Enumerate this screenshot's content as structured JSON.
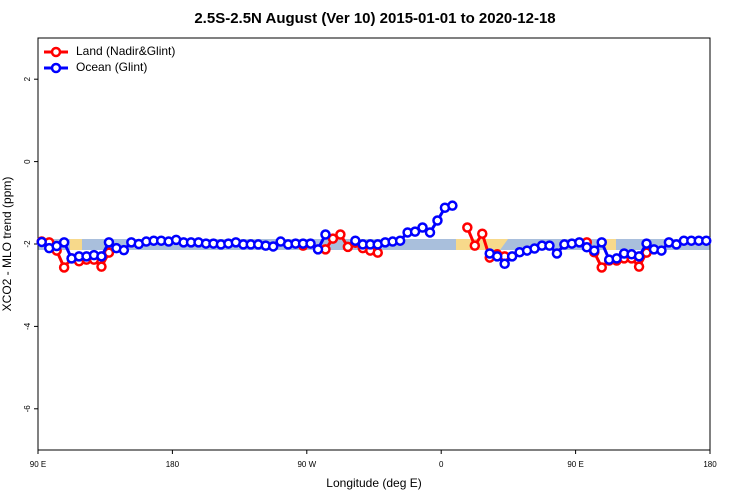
{
  "chart_data": {
    "type": "line",
    "title": "2.5S-2.5N August (Ver 10)   2015-01-01 to 2020-12-18",
    "x_label": "Longitude (deg E)",
    "y_label": "XCO2 - MLO trend (ppm)",
    "x": [
      92.5,
      97.5,
      102.5,
      107.5,
      112.5,
      117.5,
      122.5,
      127.5,
      132.5,
      137.5,
      142.5,
      147.5,
      152.5,
      157.5,
      162.5,
      167.5,
      172.5,
      177.5,
      182.5,
      187.5,
      192.5,
      197.5,
      202.5,
      207.5,
      212.5,
      217.5,
      222.5,
      227.5,
      232.5,
      237.5,
      242.5,
      247.5,
      252.5,
      257.5,
      262.5,
      267.5,
      272.5,
      277.5,
      282.5,
      287.5,
      292.5,
      297.5,
      302.5,
      307.5,
      312.5,
      317.5,
      322.5,
      327.5,
      332.5,
      337.5,
      342.5,
      347.5,
      352.5,
      357.5,
      362.5,
      367.5,
      372.5,
      377.5,
      382.5,
      387.5,
      392.5,
      397.5,
      402.5,
      407.5,
      412.5,
      417.5,
      422.5,
      427.5,
      432.5,
      437.5,
      442.5,
      447.5,
      452.5,
      457.5,
      462.5,
      467.5,
      472.5,
      477.5,
      482.5,
      487.5,
      492.5,
      497.5,
      502.5,
      507.5,
      512.5,
      517.5,
      522.5,
      527.5,
      532.5,
      537.5
    ],
    "series": [
      {
        "name": "Land (Nadir&Glint)",
        "color": "#ff0000",
        "values": [
          -1.94,
          -1.96,
          -2.16,
          -2.57,
          -2.35,
          -2.42,
          -2.38,
          -2.38,
          -2.55,
          -2.21,
          null,
          null,
          null,
          null,
          null,
          null,
          null,
          null,
          null,
          null,
          null,
          null,
          null,
          null,
          null,
          null,
          null,
          null,
          null,
          null,
          null,
          null,
          null,
          null,
          null,
          -2.04,
          null,
          null,
          -2.13,
          -1.87,
          -1.77,
          -2.07,
          -1.97,
          -2.1,
          -2.16,
          -2.21,
          null,
          null,
          null,
          null,
          null,
          null,
          null,
          null,
          null,
          null,
          null,
          -1.6,
          -2.04,
          -1.75,
          -2.33,
          -2.25,
          -2.3,
          null,
          null,
          null,
          null,
          null,
          null,
          null,
          null,
          null,
          null,
          -1.96,
          -2.2,
          -2.57,
          -2.4,
          -2.4,
          -2.35,
          -2.35,
          -2.55,
          -2.21,
          null,
          null,
          null,
          null,
          null,
          null,
          null,
          null
        ]
      },
      {
        "name": "Ocean (Glint)",
        "color": "#0000ff",
        "values": [
          -1.95,
          -2.1,
          -2.05,
          -1.96,
          -2.35,
          -2.3,
          -2.3,
          -2.27,
          -2.3,
          -1.96,
          -2.1,
          -2.15,
          -1.96,
          -2.0,
          -1.94,
          -1.92,
          -1.92,
          -1.94,
          -1.9,
          -1.96,
          -1.96,
          -1.96,
          -1.99,
          -1.99,
          -2.01,
          -1.99,
          -1.96,
          -2.01,
          -2.01,
          -2.01,
          -2.04,
          -2.06,
          -1.94,
          -2.01,
          -1.99,
          -1.99,
          -1.99,
          -2.13,
          -1.77,
          null,
          null,
          null,
          -1.92,
          -2.01,
          -2.01,
          -2.01,
          -1.96,
          -1.94,
          -1.92,
          -1.72,
          -1.7,
          -1.6,
          -1.72,
          -1.43,
          -1.12,
          -1.07,
          null,
          null,
          null,
          null,
          -2.23,
          -2.3,
          -2.48,
          -2.3,
          -2.2,
          -2.16,
          -2.11,
          -2.04,
          -2.04,
          -2.23,
          -2.01,
          -1.99,
          -1.96,
          -2.08,
          -2.16,
          -1.96,
          -2.38,
          -2.35,
          -2.23,
          -2.25,
          -2.3,
          -1.99,
          -2.13,
          -2.16,
          -1.96,
          -2.01,
          -1.92,
          -1.92,
          -1.92,
          -1.92
        ]
      }
    ],
    "xlim": [
      90,
      540
    ],
    "xticks": [
      {
        "value": 90,
        "label": "90 E"
      },
      {
        "value": 180,
        "label": "180"
      },
      {
        "value": 270,
        "label": "90 W"
      },
      {
        "value": 360,
        "label": "0"
      },
      {
        "value": 450,
        "label": "90 E"
      },
      {
        "value": 540,
        "label": "180"
      }
    ],
    "ylim": [
      -7,
      3
    ],
    "yticks": [
      -6,
      -4,
      -2,
      0,
      2
    ],
    "grid": false,
    "legend": "top-left"
  }
}
